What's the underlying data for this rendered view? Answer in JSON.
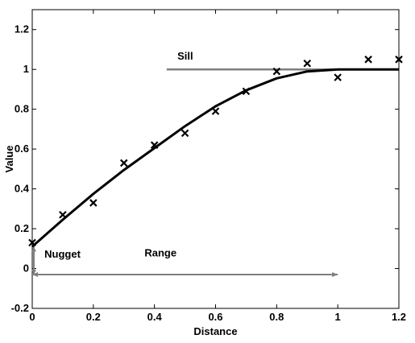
{
  "chart_data": {
    "type": "scatter",
    "xlabel": "Distance",
    "ylabel": "Value",
    "xlim": [
      0,
      1.2
    ],
    "ylim": [
      -0.2,
      1.3
    ],
    "x_ticks": [
      "0",
      "0.2",
      "0.4",
      "0.6",
      "0.8",
      "1",
      "1.2"
    ],
    "y_ticks": [
      "-0.2",
      "0",
      "0.2",
      "0.4",
      "0.6",
      "0.8",
      "1",
      "1.2"
    ],
    "grid": false,
    "points": {
      "marker": "x",
      "x": [
        0,
        0.1,
        0.2,
        0.3,
        0.4,
        0.5,
        0.6,
        0.7,
        0.8,
        0.9,
        1.0,
        1.1,
        1.2
      ],
      "y": [
        0.13,
        0.27,
        0.33,
        0.53,
        0.62,
        0.68,
        0.79,
        0.89,
        0.99,
        1.03,
        0.96,
        1.05,
        1.05
      ]
    },
    "model_curve": {
      "x": [
        0,
        0.1,
        0.2,
        0.3,
        0.4,
        0.5,
        0.6,
        0.7,
        0.8,
        0.9,
        1.0,
        1.2
      ],
      "y": [
        0.11,
        0.245,
        0.375,
        0.495,
        0.605,
        0.715,
        0.815,
        0.895,
        0.955,
        0.99,
        1.0,
        1.0
      ]
    },
    "annotations": {
      "sill": {
        "text": "Sill",
        "value": 1.0,
        "x_start": 0.44,
        "x_end": 1.2
      },
      "nugget": {
        "text": "Nugget",
        "x": 0,
        "y_from": -0.03,
        "y_to": 0.11
      },
      "range": {
        "text": "Range",
        "y": -0.03,
        "x_from": 0,
        "x_to": 1.0
      }
    },
    "colors": {
      "curve": "#000000",
      "points": "#000000",
      "annotation": "#7f7f7f",
      "axis": "#000000"
    }
  }
}
